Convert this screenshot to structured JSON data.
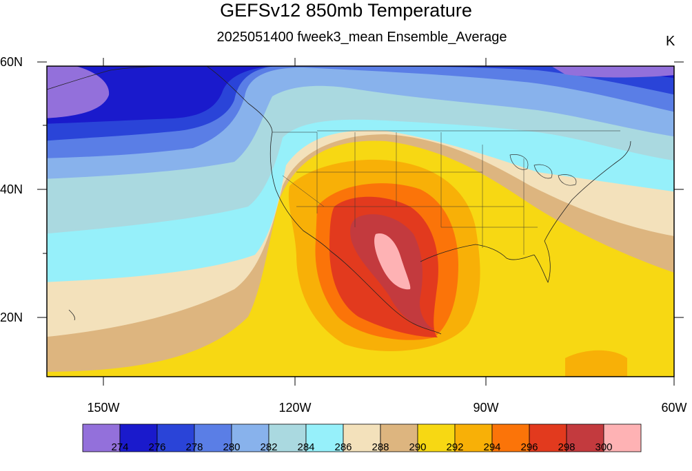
{
  "title": "GEFSv12 850mb Temperature",
  "subtitle": "2025051400 fweek3_mean Ensemble_Average",
  "units": "K",
  "lat_labels": [
    "60N",
    "40N",
    "20N"
  ],
  "lon_labels": [
    "150W",
    "120W",
    "90W",
    "60W"
  ],
  "colorbar": {
    "colors": [
      "#9370db",
      "#1a1acc",
      "#2a44d8",
      "#5a7ee6",
      "#88b2ec",
      "#aad9e0",
      "#96f0fa",
      "#f3e1bb",
      "#ddb57f",
      "#f7d813",
      "#f8b007",
      "#fb7409",
      "#e23a1e",
      "#c33a3e",
      "#feb2b4"
    ],
    "labels": [
      "274",
      "276",
      "278",
      "280",
      "282",
      "284",
      "286",
      "288",
      "290",
      "292",
      "294",
      "296",
      "298",
      "300"
    ]
  }
}
